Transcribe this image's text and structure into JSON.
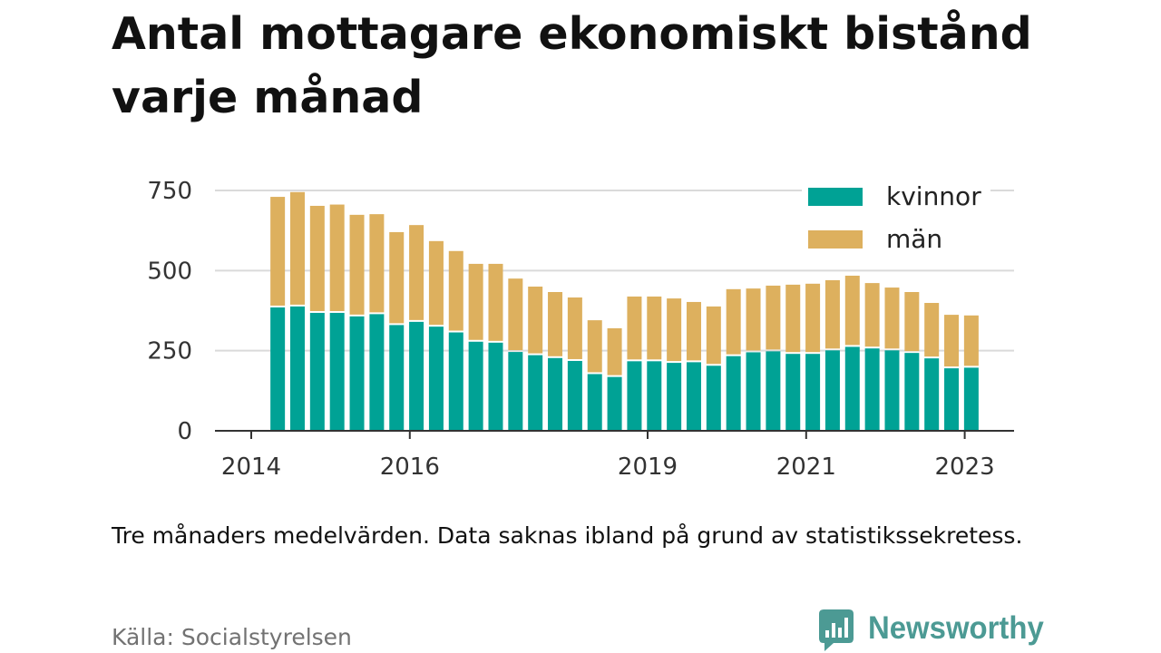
{
  "chart_data": {
    "type": "bar",
    "stacked": true,
    "title": "Antal mottagare ekonomiskt bistånd varje månad",
    "note": "Tre månaders medelvärden. Data saknas ibland på grund av statistikssekretess.",
    "x": [
      "2014-05",
      "2014-08",
      "2014-11",
      "2015-02",
      "2015-05",
      "2015-08",
      "2015-11",
      "2016-02",
      "2016-05",
      "2016-08",
      "2016-11",
      "2017-02",
      "2017-05",
      "2017-08",
      "2017-11",
      "2018-02",
      "2018-05",
      "2018-08",
      "2018-11",
      "2019-02",
      "2019-05",
      "2019-08",
      "2019-11",
      "2020-02",
      "2020-05",
      "2020-08",
      "2020-11",
      "2021-02",
      "2021-05",
      "2021-08",
      "2021-11",
      "2022-02",
      "2022-05",
      "2022-08",
      "2022-11",
      "2023-02"
    ],
    "series": [
      {
        "name": "kvinnor",
        "color": "#00a295",
        "values": [
          385,
          388,
          368,
          368,
          357,
          364,
          330,
          340,
          325,
          307,
          278,
          275,
          246,
          236,
          227,
          218,
          177,
          168,
          217,
          217,
          212,
          214,
          203,
          233,
          245,
          248,
          240,
          240,
          251,
          262,
          257,
          251,
          243,
          226,
          195,
          197
        ]
      },
      {
        "name": "män",
        "color": "#ddb05e",
        "values": [
          345,
          357,
          334,
          338,
          317,
          312,
          290,
          302,
          267,
          254,
          243,
          246,
          229,
          214,
          206,
          198,
          168,
          152,
          202,
          202,
          201,
          188,
          185,
          209,
          199,
          205,
          216,
          219,
          219,
          222,
          204,
          196,
          190,
          173,
          167,
          163
        ]
      }
    ],
    "xticks": [
      2014,
      2016,
      2019,
      2021,
      2023
    ],
    "yticks": [
      0,
      250,
      500,
      750
    ],
    "ylim": [
      0,
      750
    ],
    "grid": "horizontal",
    "legend": "top-right"
  },
  "footer": {
    "source": "Källa: Socialstyrelsen",
    "brand": {
      "name": "Newsworthy",
      "icon": "newsworthy-logo-icon",
      "color": "#4c9a94"
    }
  }
}
